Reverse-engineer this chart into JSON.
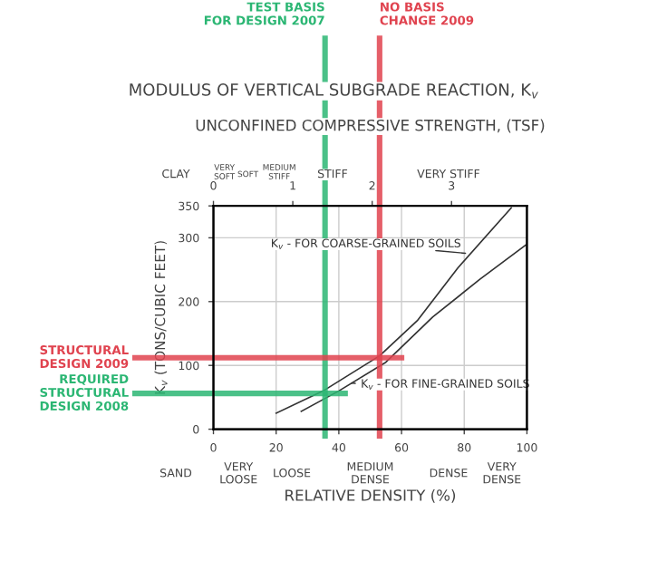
{
  "chart_data": {
    "type": "line",
    "title": "MODULUS OF VERTICAL SUBGRADE REACTION, K$_{v}$",
    "xlabel": "RELATIVE DENSITY (%)",
    "ylabel": "K$_{v}$ (TONS/CUBIC FEET)",
    "x2label": "UNCONFINED COMPRESSIVE STRENGTH, (TSF)",
    "xlim": [
      0,
      100
    ],
    "xticks": [
      0,
      20,
      40,
      60,
      80,
      100
    ],
    "x2lim": [
      0,
      3.95
    ],
    "x2ticks": [
      0,
      1,
      2,
      3
    ],
    "ylim": [
      0,
      350
    ],
    "yticks": [
      0,
      100,
      200,
      300,
      350
    ],
    "grid": true,
    "marker": "none",
    "line_style": "solid",
    "series": [
      {
        "name": "K$_{v}$ - FOR COARSE-GRAINED SOILS",
        "color": "#333333",
        "x": [
          20,
          35,
          53,
          65,
          78,
          95
        ],
        "values": [
          25,
          60,
          115,
          170,
          253,
          347
        ]
      },
      {
        "name": "K$_{v}$ - FOR FINE-GRAINED SOILS",
        "color": "#333333",
        "x": [
          28,
          40,
          55,
          70,
          85,
          100
        ],
        "values": [
          28,
          60,
          105,
          176,
          235,
          290
        ]
      }
    ],
    "ref_lines": [
      {
        "axis": "x",
        "value": 35.6,
        "label": "TEST BASIS\nFOR DESIGN 2007",
        "color": "#2bb673"
      },
      {
        "axis": "x",
        "value": 53,
        "label": "NO BASIS\nCHANGE 2009",
        "color": "#e0434f"
      },
      {
        "axis": "y",
        "value": 112,
        "label": "STRUCTURAL\nDESIGN 2009",
        "color": "#e0434f"
      },
      {
        "axis": "y",
        "value": 56,
        "label": "REQUIRED\nSTRUCTURAL\nDESIGN 2008",
        "color": "#2bb673"
      }
    ],
    "annotations": [
      "CLAY",
      "VERY\nSOFT",
      "SOFT",
      "MEDIUM\nSTIFF",
      "STIFF",
      "VERY STIFF",
      "SAND",
      "VERY\nLOOSE",
      "LOOSE",
      "MEDIUM\nDENSE",
      "DENSE",
      "VERY\nDENSE"
    ]
  }
}
